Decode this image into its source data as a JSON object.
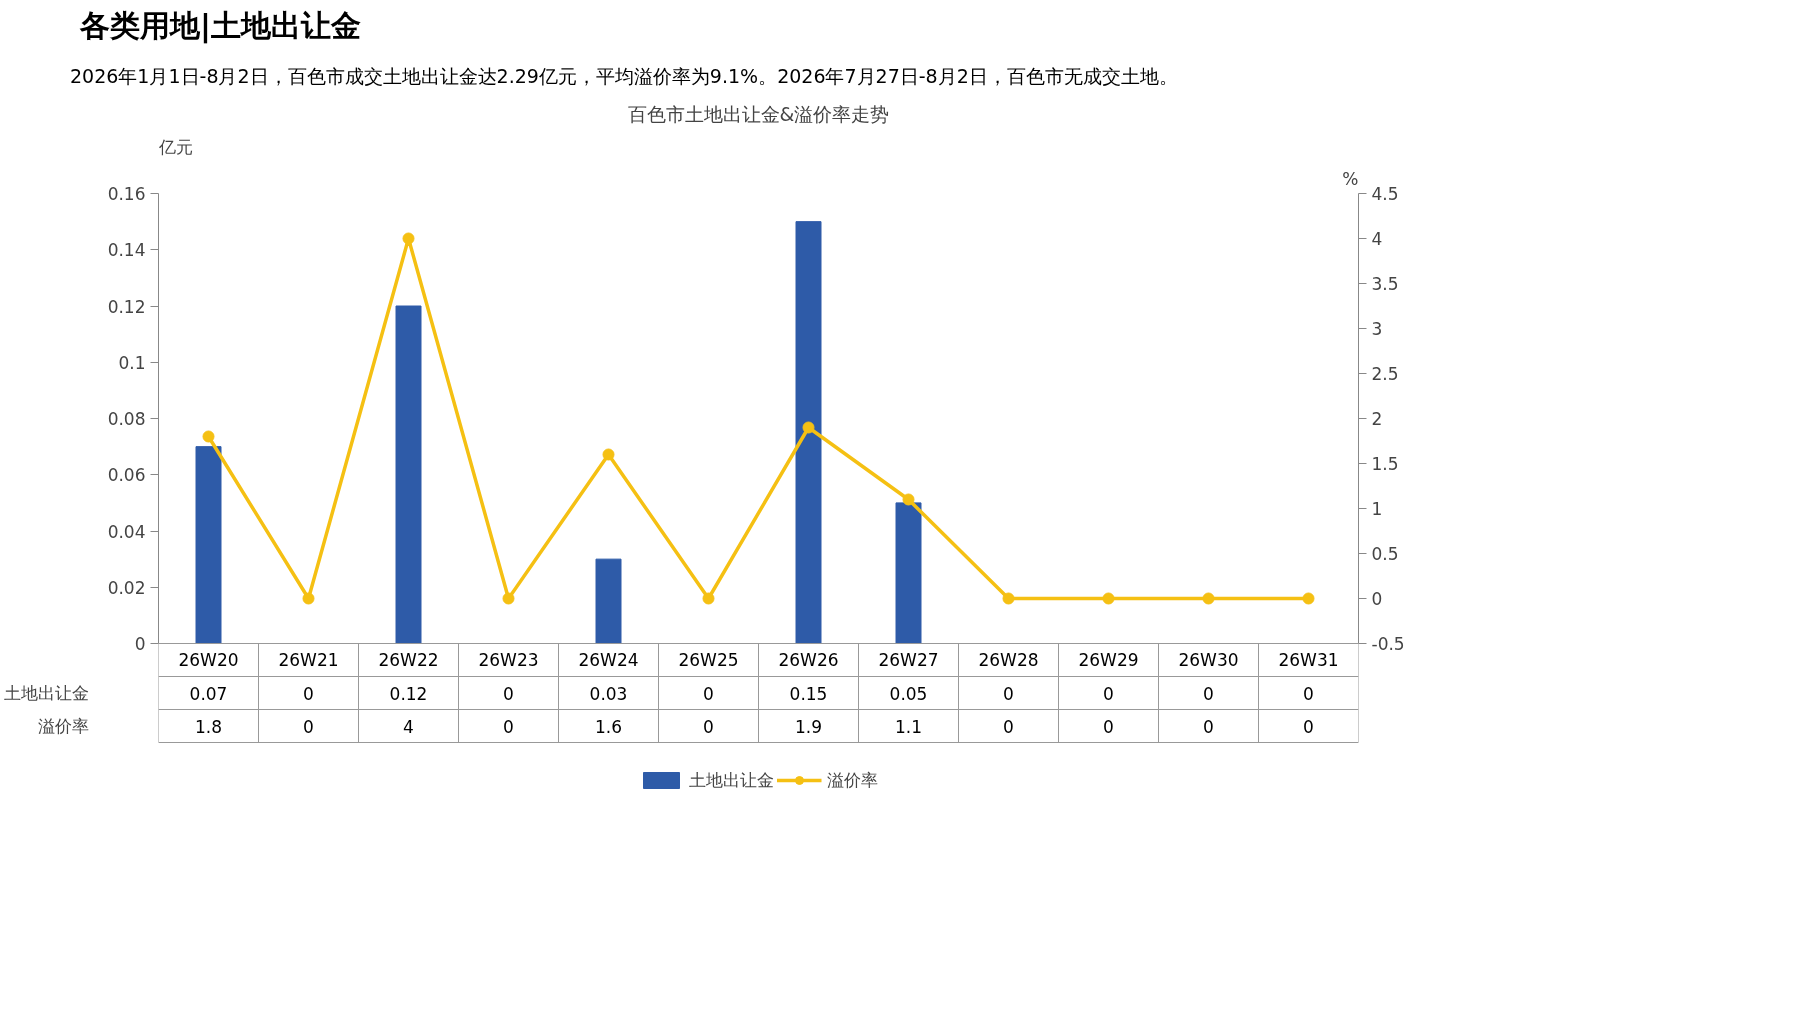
{
  "chart_data": {
    "type": "bar",
    "title": "百色市土地出让金&溢价率走势",
    "subtitle": "2026年1月1日-8月2日，百色市成交土地出让金达2.29亿元，平均溢价率为9.1%。2026年7月27日-8月2日，百色市无成交土地。",
    "annotations": [
      "各类用地|土地出让金"
    ],
    "ylabel": "亿元",
    "y2label": "%",
    "categories": [
      "26W20",
      "26W21",
      "26W22",
      "26W23",
      "26W24",
      "26W25",
      "26W26",
      "26W27",
      "26W28",
      "26W29",
      "26W30",
      "26W31"
    ],
    "series": [
      {
        "name": "土地出让金",
        "color": "#2e5ba8",
        "values": [
          0.07,
          0,
          0.12,
          0,
          0.03,
          0,
          0.15,
          0.05,
          0,
          0,
          0,
          0
        ]
      },
      {
        "name": "溢价率",
        "type": "line",
        "axis": "y2",
        "color": "#f5c013",
        "marker": "circle",
        "values": [
          1.8,
          0,
          4,
          0,
          1.6,
          0,
          1.9,
          1.1,
          0,
          0,
          0,
          0
        ]
      }
    ],
    "ylim": [
      0,
      0.16
    ],
    "yticks": [
      0,
      0.02,
      0.04,
      0.06,
      0.08,
      0.1,
      0.12,
      0.14,
      0.16
    ],
    "y2lim": [
      -0.5,
      4.5
    ],
    "y2ticks": [
      -0.5,
      0,
      0.5,
      1,
      1.5,
      2,
      2.5,
      3,
      3.5,
      4,
      4.5
    ],
    "data_labels": true,
    "legend": "bottom"
  }
}
